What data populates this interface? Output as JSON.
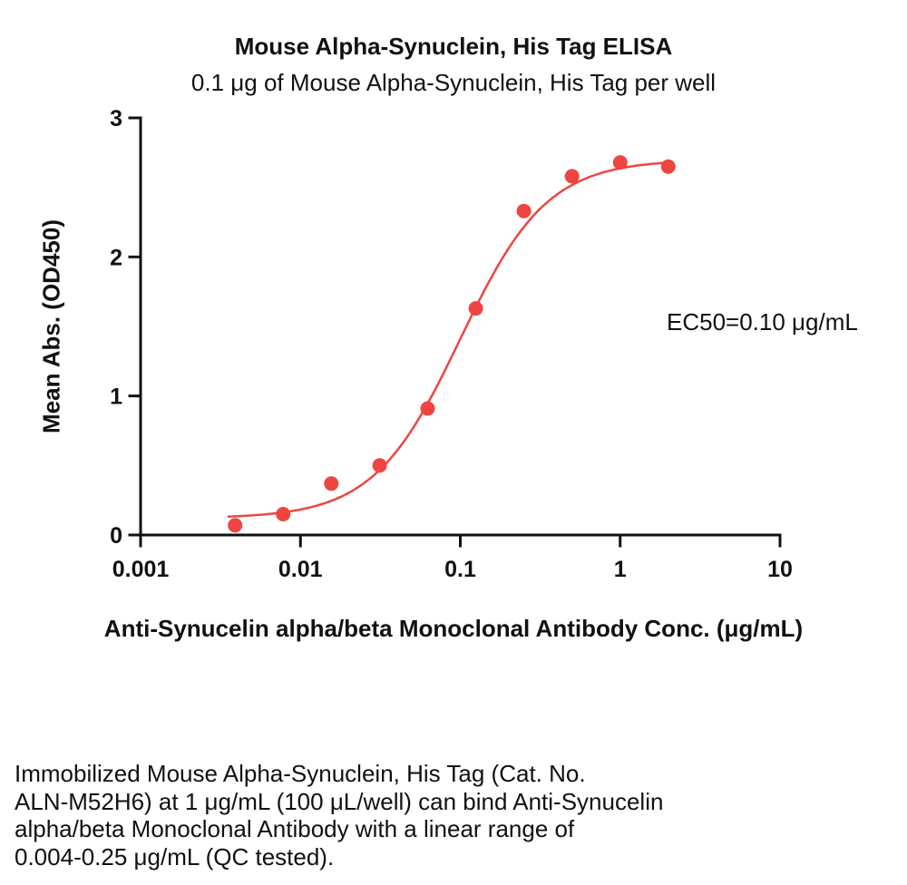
{
  "chart_data": {
    "type": "scatter",
    "title": "Mouse Alpha-Synuclein, His Tag ELISA",
    "subtitle": "0.1 μg of Mouse Alpha-Synuclein, His Tag per well",
    "xlabel": "Anti-Synucelin alpha/beta Monoclonal Antibody Conc. (μg/mL)",
    "ylabel": "Mean Abs. (OD450)",
    "annotation": "EC50=0.10 μg/mL",
    "x_scale": "log",
    "xlim": [
      0.001,
      10
    ],
    "ylim": [
      0,
      3
    ],
    "x_ticks": [
      0.001,
      0.01,
      0.1,
      1,
      10
    ],
    "x_tick_labels": [
      "0.001",
      "0.01",
      "0.1",
      "1",
      "10"
    ],
    "y_ticks": [
      0,
      1,
      2,
      3
    ],
    "y_tick_labels": [
      "0",
      "1",
      "2",
      "3"
    ],
    "grid": false,
    "legend": "none",
    "series": [
      {
        "name": "Anti-Synucelin alpha/beta Monoclonal Antibody",
        "x": [
          0.0039,
          0.0078,
          0.0156,
          0.0313,
          0.0625,
          0.125,
          0.25,
          0.5,
          1,
          2
        ],
        "y": [
          0.07,
          0.15,
          0.37,
          0.5,
          0.91,
          1.63,
          2.33,
          2.58,
          2.68,
          2.65
        ]
      }
    ],
    "fit": {
      "type": "4PL",
      "bottom": 0.12,
      "top": 2.7,
      "ec50": 0.1,
      "hill": 1.6,
      "range": [
        0.0035,
        2.15
      ]
    },
    "point_color": "#ee4540",
    "line_color": "#ee4540",
    "axis_color": "#111111"
  },
  "caption": "Immobilized Mouse Alpha-Synuclein, His Tag (Cat. No.\nALN-M52H6) at 1 μg/mL (100 μL/well) can bind Anti-Synucelin\nalpha/beta Monoclonal Antibody with a linear range of\n0.004-0.25 μg/mL (QC tested)."
}
